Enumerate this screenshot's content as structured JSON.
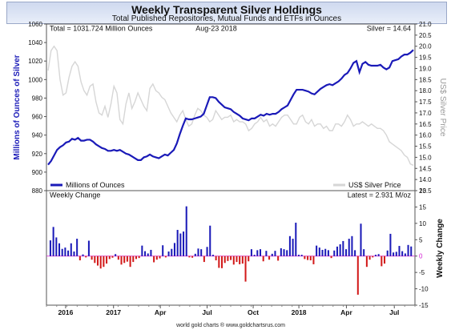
{
  "chart_data": [
    {
      "type": "line",
      "title": "Weekly Transparent Silver Holdings",
      "subtitle": "Total Published Repositories, Mutual Funds and ETFs in Ounces",
      "ylabel": "Millions of Ounces of Silver",
      "y2label": "US$ Silver Price",
      "ylim": [
        880,
        1060
      ],
      "y2lim": [
        13.5,
        21.0
      ],
      "annotations": {
        "total": "Total = 1031.724 Million Ounces",
        "date": "Aug-23  2018",
        "silver": "Silver = 14.64"
      },
      "legend": [
        "Millions of Ounces",
        "US$ Silver Price"
      ],
      "legend_placement": "bottom",
      "x_ticks": [
        "2016",
        "2017",
        "Apr",
        "Jul",
        "Oct",
        "2018",
        "Apr",
        "Jul"
      ],
      "y_ticks": [
        "880",
        "900",
        "920",
        "940",
        "960",
        "980",
        "1000",
        "1020",
        "1040",
        "1060"
      ],
      "y2_ticks": [
        "13.5",
        "14.0",
        "14.5",
        "15.0",
        "15.5",
        "16.0",
        "16.5",
        "17.0",
        "17.5",
        "18.0",
        "18.5",
        "19.0",
        "19.5",
        "20.0",
        "20.5",
        "21.0"
      ],
      "series": [
        {
          "name": "Millions of Ounces",
          "color": "#1a1ab8",
          "values": [
            908,
            912,
            918,
            924,
            927,
            929,
            932,
            933,
            936,
            935,
            937,
            934,
            934,
            935,
            935,
            933,
            930,
            928,
            926,
            925,
            923,
            923,
            924,
            923,
            924,
            922,
            920,
            919,
            917,
            915,
            913,
            913,
            916,
            917,
            919,
            917,
            916,
            915,
            917,
            919,
            918,
            921,
            924,
            931,
            941,
            950,
            958,
            957,
            957,
            958,
            959,
            960,
            963,
            972,
            981,
            981,
            980,
            976,
            973,
            970,
            969,
            968,
            965,
            963,
            961,
            958,
            957,
            956,
            958,
            958,
            960,
            962,
            961,
            963,
            962,
            963,
            963,
            965,
            968,
            970,
            972,
            978,
            984,
            989,
            989,
            989,
            988,
            987,
            985,
            984,
            987,
            990,
            992,
            994,
            995,
            994,
            996,
            998,
            1001,
            1005,
            1007,
            1012,
            1018,
            1020,
            1008,
            1017,
            1019,
            1016,
            1015,
            1015,
            1015,
            1016,
            1013,
            1011,
            1013,
            1020,
            1021,
            1022,
            1025,
            1027,
            1027,
            1029,
            1032
          ]
        },
        {
          "name": "US$ Silver Price",
          "color": "#d6d6d6",
          "values": [
            18.9,
            19.8,
            20.0,
            19.8,
            18.5,
            17.8,
            17.9,
            18.6,
            19.1,
            19.3,
            19.1,
            18.4,
            18.0,
            17.8,
            18.2,
            18.3,
            17.5,
            17.0,
            16.9,
            17.3,
            16.8,
            17.4,
            18.2,
            17.9,
            16.7,
            16.5,
            17.4,
            17.9,
            17.2,
            17.5,
            17.9,
            17.6,
            17.3,
            17.1,
            18.1,
            18.3,
            18.0,
            17.9,
            17.7,
            17.6,
            17.3,
            17.0,
            16.8,
            16.6,
            16.9,
            17.1,
            16.7,
            16.4,
            16.5,
            16.9,
            17.2,
            17.1,
            16.9,
            16.8,
            16.6,
            16.7,
            17.1,
            16.9,
            16.7,
            16.8,
            16.8,
            16.9,
            16.6,
            16.7,
            16.6,
            16.6,
            16.5,
            16.2,
            16.3,
            16.5,
            16.6,
            16.8,
            16.6,
            16.7,
            16.4,
            16.5,
            16.4,
            16.6,
            16.8,
            16.9,
            16.9,
            16.7,
            16.5,
            16.5,
            16.8,
            16.9,
            16.6,
            16.5,
            16.7,
            16.4,
            16.5,
            16.5,
            16.3,
            16.4,
            16.2,
            16.2,
            16.5,
            16.5,
            16.4,
            16.6,
            16.9,
            16.7,
            16.4,
            16.5,
            16.5,
            16.6,
            16.5,
            16.4,
            16.5,
            16.4,
            16.3,
            16.3,
            16.2,
            16.0,
            15.7,
            15.6,
            15.5,
            15.4,
            15.3,
            15.1,
            15.0,
            14.7,
            14.64
          ]
        }
      ]
    },
    {
      "type": "bar",
      "title": "Weekly Change",
      "ylabel": "Weekly Change",
      "ylim": [
        -15,
        20
      ],
      "annotation": "Latest = 2.931 M/oz",
      "y_ticks": [
        "-15",
        "-10",
        "-5",
        "0",
        "5",
        "10",
        "15",
        "20"
      ],
      "colors": {
        "positive": "#1a1ab8",
        "negative": "#d21a1a"
      },
      "values": [
        4.8,
        8.9,
        5.7,
        3.9,
        2.2,
        2.6,
        1.7,
        3.9,
        1.4,
        5.3,
        -1.3,
        0.5,
        -0.4,
        4.7,
        -1.1,
        -2.1,
        -2.9,
        -3.8,
        -3.3,
        -2.3,
        -0.9,
        -0.5,
        0.6,
        -1.1,
        -2.6,
        -2.1,
        -1.7,
        -3.3,
        -1.8,
        -0.9,
        -0.6,
        3.2,
        1.5,
        0.8,
        1.9,
        -1.9,
        -1.1,
        -0.7,
        3.3,
        -0.4,
        1.4,
        2.2,
        4.0,
        8.0,
        6.9,
        7.5,
        15.2,
        -0.4,
        -0.5,
        0.7,
        2.3,
        2.1,
        -1.8,
        2.8,
        9.3,
        0.4,
        -1.3,
        -3.6,
        -3.7,
        -2.1,
        -1.5,
        -1.2,
        -2.6,
        -1.8,
        -2.5,
        -2.3,
        -7.8,
        -1.6,
        2.1,
        0.4,
        1.8,
        2.1,
        -1.6,
        1.6,
        -1.1,
        0.7,
        1.6,
        -1.4,
        2.4,
        2.1,
        1.8,
        6.1,
        5.3,
        10.2,
        0.4,
        0.4,
        -0.9,
        -1.2,
        -1.3,
        -2.5,
        3.2,
        2.6,
        1.9,
        2.2,
        1.8,
        -0.6,
        1.7,
        2.9,
        3.6,
        4.6,
        2.1,
        5.3,
        6.1,
        1.8,
        -11.8,
        9.9,
        2.1,
        -3.3,
        -1.1,
        -0.4,
        0.4,
        0.6,
        -3.1,
        -2.3,
        1.7,
        6.8,
        1.1,
        1.3,
        3.1,
        1.5,
        0.8,
        3.4,
        2.931
      ]
    }
  ],
  "footer": "world gold charts ® www.goldchartsrus.com"
}
